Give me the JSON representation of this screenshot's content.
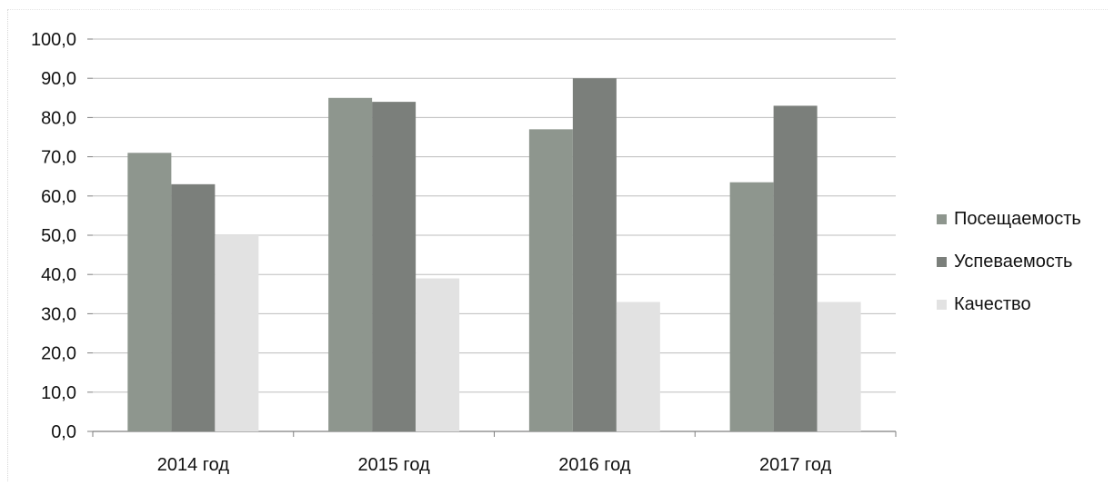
{
  "chart_data": {
    "type": "bar",
    "categories": [
      "2014 год",
      "2015 год",
      "2016 год",
      "2017 год"
    ],
    "series": [
      {
        "name": "Посещаемость",
        "values": [
          71.0,
          85.0,
          77.0,
          63.5
        ],
        "color": "#8e968e"
      },
      {
        "name": "Успеваемость",
        "values": [
          63.0,
          84.0,
          90.0,
          83.0
        ],
        "color": "#7b7f7b"
      },
      {
        "name": "Качество",
        "values": [
          50.0,
          39.0,
          33.0,
          33.0
        ],
        "color": "#e2e2e2"
      }
    ],
    "y_ticks": [
      "0,0",
      "10,0",
      "20,0",
      "30,0",
      "40,0",
      "50,0",
      "60,0",
      "70,0",
      "80,0",
      "90,0",
      "100,0"
    ],
    "ylim": [
      0,
      100
    ],
    "grid": true,
    "legend_position": "right"
  }
}
